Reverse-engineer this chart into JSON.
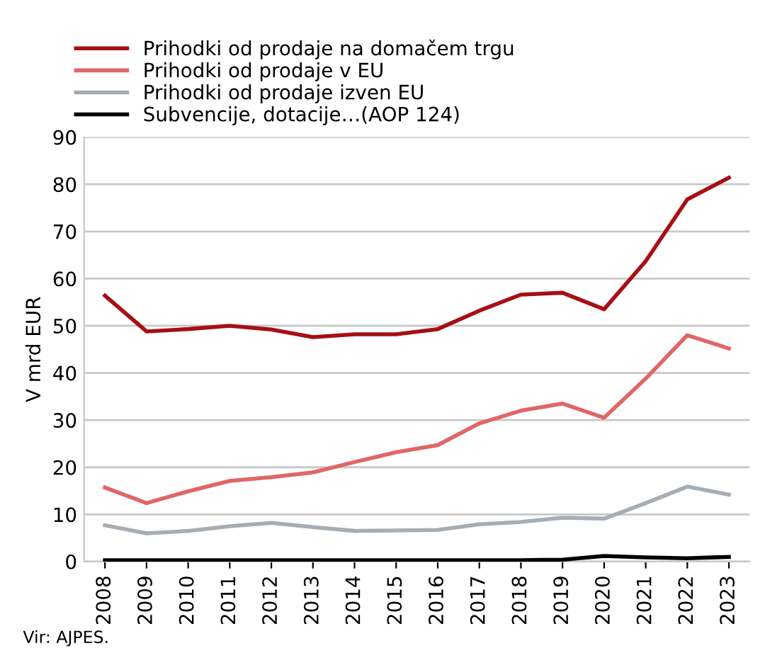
{
  "chart_data": {
    "type": "line",
    "ylabel": "V mrd EUR",
    "categories": [
      "2008",
      "2009",
      "2010",
      "2011",
      "2012",
      "2013",
      "2014",
      "2015",
      "2016",
      "2017",
      "2018",
      "2019",
      "2020",
      "2021",
      "2022",
      "2023"
    ],
    "series": [
      {
        "name": "Prihodki od prodaje na domačem trgu",
        "color": "#a50f15",
        "values": [
          56.4,
          48.8,
          49.3,
          50.0,
          49.2,
          47.6,
          48.2,
          48.2,
          49.3,
          53.2,
          56.6,
          57.0,
          53.5,
          63.7,
          76.8,
          81.4
        ]
      },
      {
        "name": "Prihodki od prodaje v EU",
        "color": "#e06666",
        "values": [
          15.7,
          12.4,
          14.9,
          17.1,
          17.9,
          18.9,
          21.1,
          23.2,
          24.7,
          29.3,
          32.0,
          33.5,
          30.5,
          38.8,
          48.0,
          45.2
        ]
      },
      {
        "name": "Prihodki od prodaje izven EU",
        "color": "#a6adb4",
        "values": [
          7.7,
          6.0,
          6.5,
          7.5,
          8.2,
          7.3,
          6.5,
          6.6,
          6.7,
          7.9,
          8.4,
          9.3,
          9.1,
          12.4,
          15.9,
          14.2
        ]
      },
      {
        "name": "Subvencije, dotacije…(AOP 124)",
        "color": "#000000",
        "values": [
          0.3,
          0.3,
          0.3,
          0.3,
          0.3,
          0.3,
          0.3,
          0.3,
          0.3,
          0.3,
          0.3,
          0.4,
          1.2,
          0.9,
          0.7,
          1.0
        ]
      }
    ],
    "ylim": [
      0,
      90
    ],
    "yticks": [
      0,
      10,
      20,
      30,
      40,
      50,
      60,
      70,
      80,
      90
    ],
    "grid": "y",
    "legend": "top left",
    "marker": "none",
    "line_style": "solid",
    "annotations": [
      "Vir: AJPES."
    ]
  }
}
